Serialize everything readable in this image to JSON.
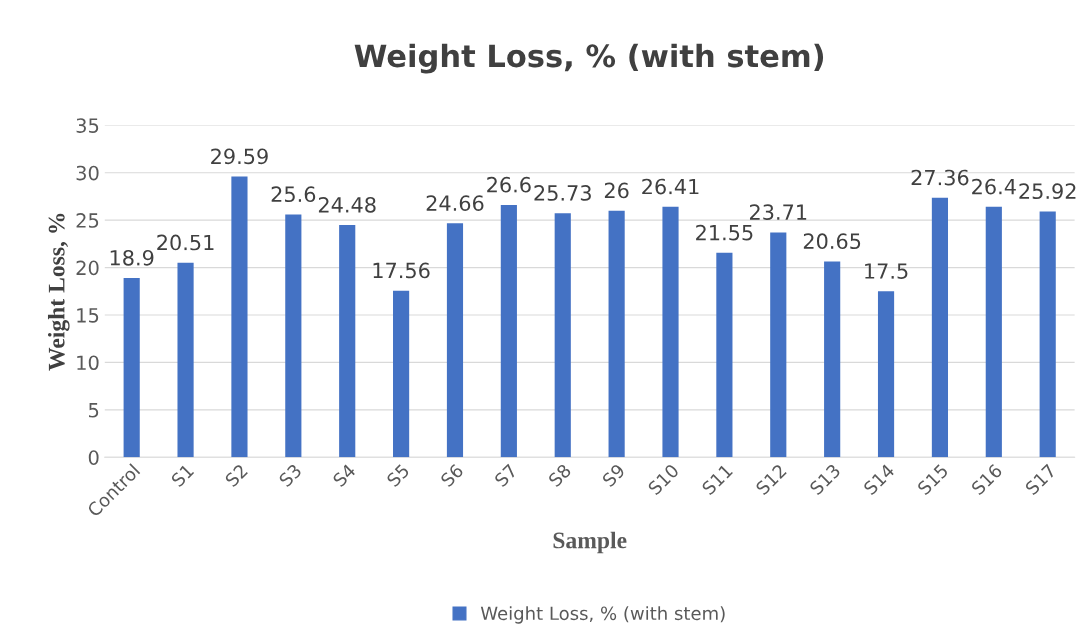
{
  "chart_data": {
    "type": "bar",
    "title": "Weight Loss, % (with stem)",
    "xlabel": "Sample",
    "ylabel": "Weight Loss, %",
    "categories": [
      "Control",
      "S1",
      "S2",
      "S3",
      "S4",
      "S5",
      "S6",
      "S7",
      "S8",
      "S9",
      "S10",
      "S11",
      "S12",
      "S13",
      "S14",
      "S15",
      "S16",
      "S17"
    ],
    "series": [
      {
        "name": "Weight Loss, % (with stem)",
        "color": "#4472c4",
        "values": [
          18.9,
          20.51,
          29.59,
          25.6,
          24.48,
          17.56,
          24.66,
          26.6,
          25.73,
          26,
          26.41,
          21.55,
          23.71,
          20.65,
          17.5,
          27.36,
          26.4,
          25.92
        ]
      }
    ],
    "ylim": [
      0,
      35
    ],
    "yticks": [
      0,
      5,
      10,
      15,
      20,
      25,
      30,
      35
    ],
    "grid": "y",
    "legend": "bottom",
    "data_labels": true
  }
}
